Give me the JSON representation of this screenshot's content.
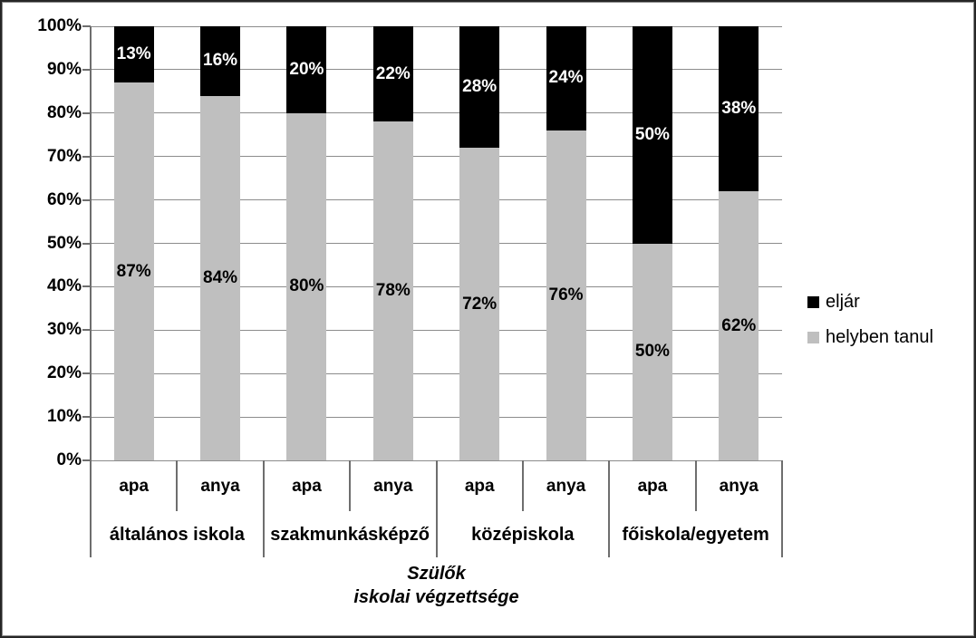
{
  "chart_data": {
    "type": "bar",
    "variant": "stacked-100-percent",
    "title": "",
    "xlabel": "Szülők iskolai végzettsége",
    "xlabel_lines": [
      "Szülők",
      "iskolai végzettsége"
    ],
    "ylabel": "",
    "ylim": [
      0,
      100
    ],
    "grid": true,
    "legend_position": "right",
    "y_tick_labels": [
      "0%",
      "10%",
      "20%",
      "30%",
      "40%",
      "50%",
      "60%",
      "70%",
      "80%",
      "90%",
      "100%"
    ],
    "groups": [
      "általános iskola",
      "szakmunkásképző",
      "középiskola",
      "főiskola/egyetem"
    ],
    "sub_categories": [
      "apa",
      "anya",
      "apa",
      "anya",
      "apa",
      "anya",
      "apa",
      "anya"
    ],
    "series": [
      {
        "name": "helyben tanul",
        "color": "#bfbfbf",
        "label_color": "#000000",
        "values": [
          87,
          84,
          80,
          78,
          72,
          76,
          50,
          62
        ]
      },
      {
        "name": "eljár",
        "color": "#000000",
        "label_color": "#ffffff",
        "values": [
          13,
          16,
          20,
          22,
          28,
          24,
          50,
          38
        ]
      }
    ],
    "data_label_suffix": "%",
    "legend": [
      {
        "label": "eljár",
        "color": "#000000"
      },
      {
        "label": "helyben tanul",
        "color": "#bfbfbf"
      }
    ],
    "colors": {
      "background": "#ffffff",
      "gridline": "#8c8c8c",
      "axis_line": "#6e6e6e",
      "text": "#000000"
    }
  }
}
